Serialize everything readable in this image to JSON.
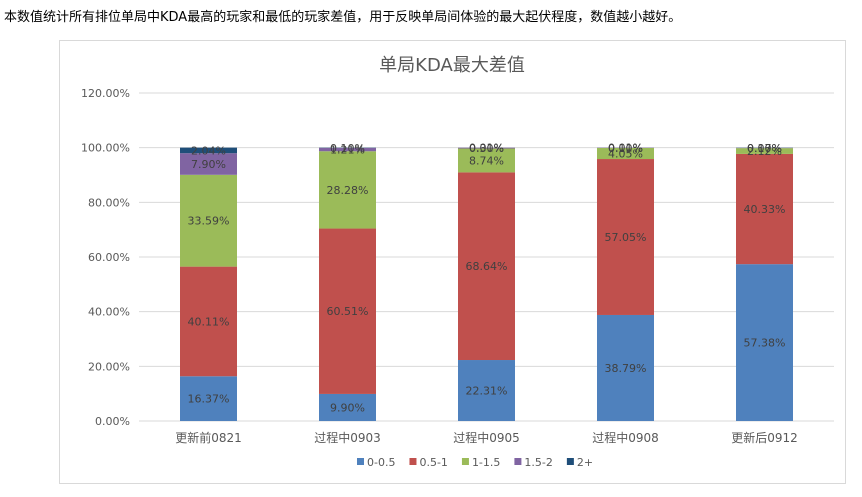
{
  "caption": "本数值统计所有排位单局中KDA最高的玩家和最低的玩家差值，用于反映单局间体验的最大起伏程度，数值越小越好。",
  "chart_data": {
    "type": "bar",
    "stacked": true,
    "title": "单局KDA最大差值",
    "xlabel": "",
    "ylabel": "",
    "ylim": [
      0,
      120
    ],
    "yticks": [
      "0.00%",
      "20.00%",
      "40.00%",
      "60.00%",
      "80.00%",
      "100.00%",
      "120.00%"
    ],
    "grid": true,
    "legend_position": "bottom",
    "categories": [
      "更新前0821",
      "过程中0903",
      "过程中0905",
      "过程中0908",
      "更新后0912"
    ],
    "series": [
      {
        "name": "0-0.5",
        "color": "#4f81bd",
        "values": [
          16.37,
          9.9,
          22.31,
          38.79,
          57.38
        ],
        "labels": [
          "16.37%",
          "9.90%",
          "22.31%",
          "38.79%",
          "57.38%"
        ]
      },
      {
        "name": "0.5-1",
        "color": "#c0504d",
        "values": [
          40.11,
          60.51,
          68.64,
          57.05,
          40.33
        ],
        "labels": [
          "40.11%",
          "60.51%",
          "68.64%",
          "57.05%",
          "40.33%"
        ]
      },
      {
        "name": "1-1.5",
        "color": "#9bbb59",
        "values": [
          33.59,
          28.28,
          8.74,
          4.05,
          2.12
        ],
        "labels": [
          "33.59%",
          "28.28%",
          "8.74%",
          "4.05%",
          "2.12%"
        ]
      },
      {
        "name": "1.5-2",
        "color": "#8064a2",
        "values": [
          7.9,
          1.21,
          0.3,
          0.1,
          0.1
        ],
        "labels": [
          "7.90%",
          "1.21%",
          "0.30%",
          "0.10%",
          "0.10%"
        ]
      },
      {
        "name": "2+",
        "color": "#1f4e79",
        "values": [
          2.04,
          0.1,
          0.01,
          0.01,
          0.07
        ],
        "labels": [
          "2.04%",
          "0.10%",
          "0.01%",
          "0.01%",
          "0.07%"
        ]
      }
    ]
  }
}
